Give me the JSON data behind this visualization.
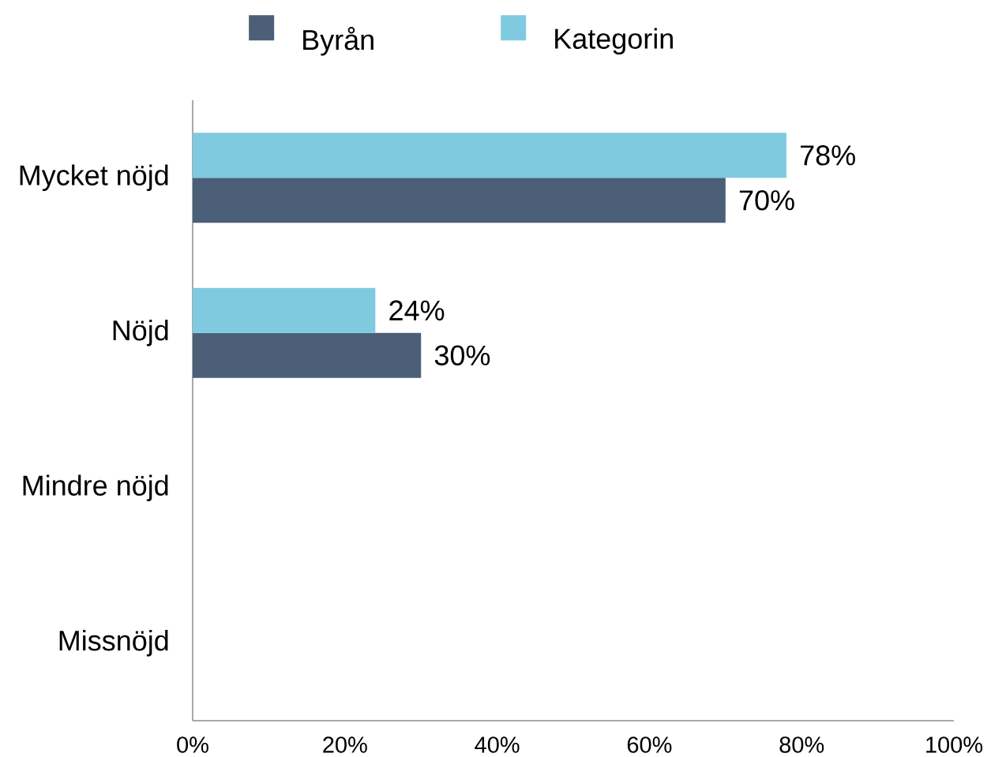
{
  "chart_data": {
    "type": "bar",
    "orientation": "horizontal",
    "categories": [
      "Mycket nöjd",
      "Nöjd",
      "Mindre nöjd",
      "Missnöjd"
    ],
    "series": [
      {
        "name": "Byrån",
        "color": "#4b5f78",
        "values": [
          70,
          30,
          null,
          null
        ],
        "value_labels": [
          "70%",
          "30%",
          null,
          null
        ]
      },
      {
        "name": "Kategorin",
        "color": "#7fcadf",
        "values": [
          78,
          24,
          null,
          null
        ],
        "value_labels": [
          "78%",
          "24%",
          null,
          null
        ]
      }
    ],
    "xlim": [
      0,
      100
    ],
    "xticks": [
      {
        "value": 0,
        "label": "0%"
      },
      {
        "value": 20,
        "label": "20%"
      },
      {
        "value": 40,
        "label": "40%"
      },
      {
        "value": 60,
        "label": "60%"
      },
      {
        "value": 80,
        "label": "80%"
      },
      {
        "value": 100,
        "label": "100%"
      }
    ],
    "legend": "top"
  }
}
